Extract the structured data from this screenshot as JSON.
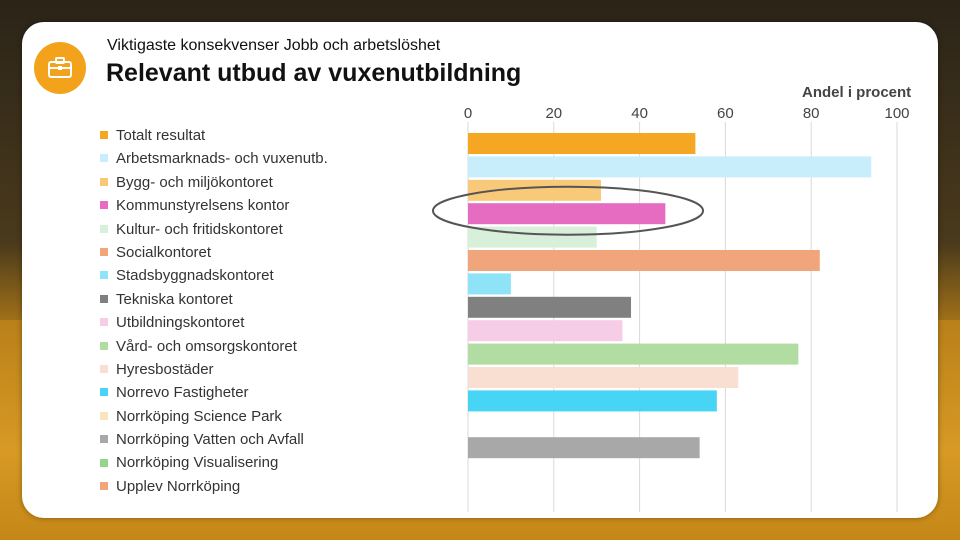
{
  "header": {
    "subtitle": "Viktigaste konsekvenser Jobb och arbetslöshet",
    "title": "Relevant utbud av vuxenutbildning",
    "icon": "briefcase-icon"
  },
  "chart_data": {
    "type": "bar",
    "orientation": "horizontal",
    "axis_label": "Andel i procent",
    "xlim": [
      0,
      100
    ],
    "ticks": [
      "0",
      "20",
      "40",
      "60",
      "80",
      "100"
    ],
    "grid": true,
    "legend_position": "left",
    "categories": [
      "Totalt resultat",
      "Arbetsmarknads- och vuxenutb.",
      "Bygg- och miljökontoret",
      "Kommunstyrelsens kontor",
      "Kultur- och fritidskontoret",
      "Socialkontoret",
      "Stadsbyggnadskontoret",
      "Tekniska kontoret",
      "Utbildningskontoret",
      "Vård- och omsorgskontoret",
      "Hyresbostäder",
      "Norrevo Fastigheter",
      "Norrköping Science Park",
      "Norrköping Vatten och Avfall",
      "Norrköping Visualisering",
      "Upplev Norrköping"
    ],
    "values": [
      53,
      94,
      31,
      46,
      30,
      82,
      10,
      38,
      36,
      77,
      63,
      58,
      null,
      54,
      null,
      null
    ],
    "colors": [
      "#f5a623",
      "#c9eefb",
      "#f9c97a",
      "#e56cc0",
      "#d8efd9",
      "#f0a57a",
      "#8fe3f7",
      "#808080",
      "#f6cce6",
      "#b1dda3",
      "#f9ded2",
      "#48d5f5",
      "#fbe3bf",
      "#a8a8a8",
      "#95d68e",
      "#f0a57a"
    ],
    "highlighted_category": "Kommunstyrelsens kontor"
  }
}
